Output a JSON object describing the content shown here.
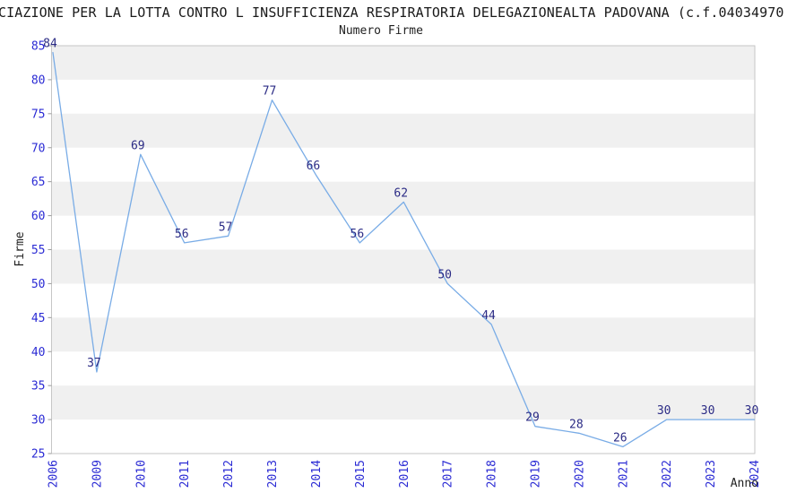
{
  "chart_data": {
    "type": "line",
    "title": "CIAZIONE PER LA LOTTA CONTRO L INSUFFICIENZA RESPIRATORIA DELEGAZIONEALTA PADOVANA (c.f.04034970",
    "subtitle": "Numero Firme",
    "xlabel": "Anno",
    "ylabel": "Firme",
    "categories": [
      "2006",
      "2009",
      "2010",
      "2011",
      "2012",
      "2013",
      "2014",
      "2015",
      "2016",
      "2017",
      "2018",
      "2019",
      "2020",
      "2021",
      "2022",
      "2023",
      "2024"
    ],
    "values": [
      84,
      37,
      69,
      56,
      57,
      77,
      66,
      56,
      62,
      50,
      44,
      29,
      28,
      26,
      30,
      30,
      30
    ],
    "ylim": [
      25,
      85
    ],
    "ytick_step": 5,
    "grid": "alternating-horizontal-bands",
    "legend_position": "none",
    "colors": {
      "line": "#79ace6",
      "data_label": "#2b2b85",
      "axis_tick_label": "#2b2bd4",
      "band_gray": "#f0f0f0",
      "plot_border": "#c6c6c6",
      "tick_mark": "#9a9a9a",
      "text": "#1f1f1f"
    }
  }
}
